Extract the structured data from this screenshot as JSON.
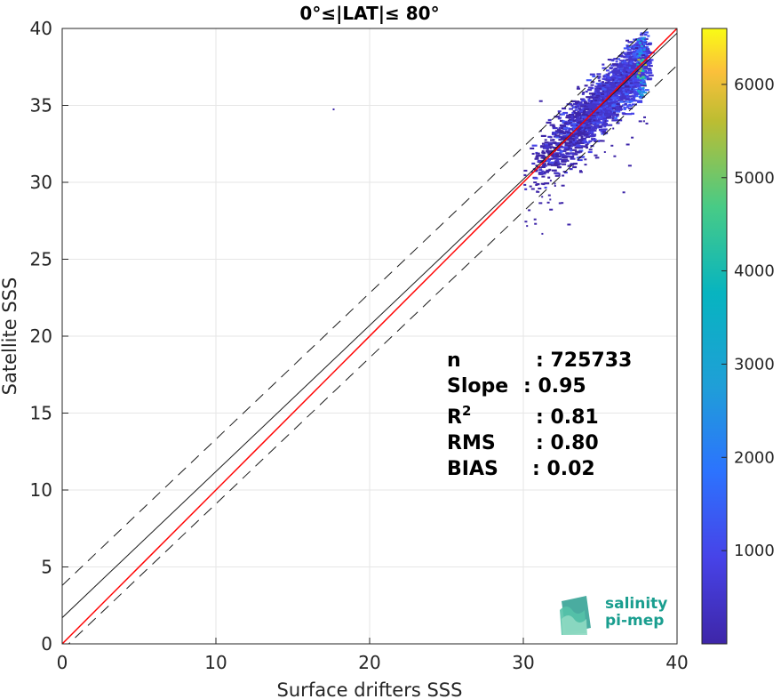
{
  "chart_data": {
    "type": "scatter",
    "title": "0°≤|LAT|≤ 80°",
    "xlabel": "Surface drifters SSS",
    "ylabel": "Satellite SSS",
    "xlim": [
      0,
      40
    ],
    "ylim": [
      0,
      40
    ],
    "xticks": [
      "0",
      "10",
      "20",
      "30",
      "40"
    ],
    "yticks": [
      "0",
      "5",
      "10",
      "15",
      "20",
      "25",
      "30",
      "35",
      "40"
    ],
    "grid": true,
    "lines": [
      {
        "name": "regression",
        "color": "#1a1a1a",
        "style": "solid",
        "slope": 0.95,
        "intercept": 1.7
      },
      {
        "name": "regression-upper",
        "color": "#1a1a1a",
        "style": "dashed",
        "slope": 0.95,
        "intercept": 3.8
      },
      {
        "name": "regression-lower",
        "color": "#1a1a1a",
        "style": "dashed",
        "slope": 0.95,
        "intercept": -0.4
      },
      {
        "name": "identity",
        "color": "#ff0000",
        "style": "solid",
        "slope": 1.0,
        "intercept": 0.0
      }
    ],
    "density": {
      "x_range": [
        29.5,
        38.2
      ],
      "y_range": [
        26.5,
        40
      ],
      "peak": {
        "x": 37.6,
        "y": 37.5
      },
      "outlier": {
        "x": 17.6,
        "y": 34.8
      }
    },
    "stats": [
      {
        "label": "n",
        "value": ": 725733"
      },
      {
        "label": "Slope",
        "value": ": 0.95"
      },
      {
        "label": "R",
        "sup": "2",
        "value": ": 0.81"
      },
      {
        "label": "RMS",
        "value": ": 0.80"
      },
      {
        "label": "BIAS",
        "value": ": 0.02"
      }
    ],
    "colorbar": {
      "colormap": "parula",
      "min": 0,
      "max": 6600,
      "ticks": [
        "1000",
        "2000",
        "3000",
        "4000",
        "5000",
        "6000"
      ]
    }
  },
  "logo": {
    "line1": "salinity",
    "line2": "pi-mep"
  }
}
